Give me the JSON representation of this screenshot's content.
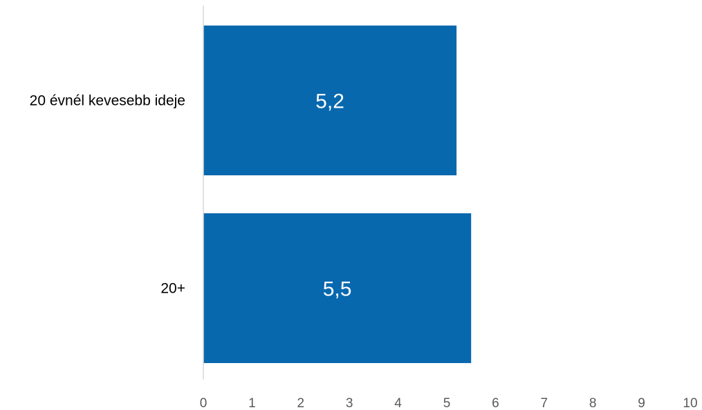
{
  "chart_data": {
    "type": "bar",
    "orientation": "horizontal",
    "categories": [
      "20 évnél kevesebb ideje",
      "20+"
    ],
    "values": [
      5.2,
      5.5
    ],
    "data_labels": [
      "5,2",
      "5,5"
    ],
    "x_ticks": [
      "0",
      "1",
      "2",
      "3",
      "4",
      "5",
      "6",
      "7",
      "8",
      "9",
      "10"
    ],
    "xlim": [
      0,
      10
    ],
    "title": "",
    "xlabel": "",
    "ylabel": "",
    "grid": false,
    "legend": "none",
    "bar_color": "#0868AE",
    "axis_color": "#D9D9D9"
  }
}
